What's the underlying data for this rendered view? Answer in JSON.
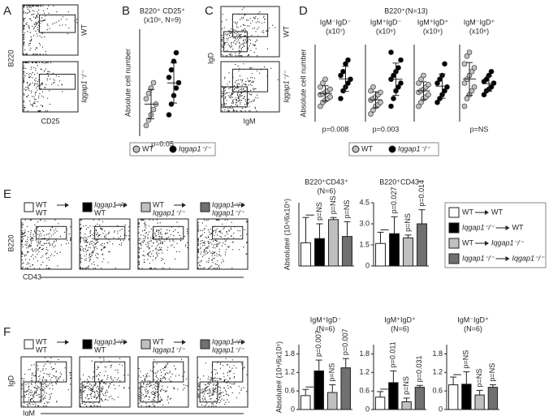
{
  "panel_labels": [
    "A",
    "B",
    "C",
    "D",
    "E",
    "F"
  ],
  "flow_A": {
    "ylabel": "B220",
    "xlabel": "CD25",
    "rows": [
      "WT",
      "Iqgap1⁻/⁻"
    ]
  },
  "flow_C": {
    "ylabel": "IgD",
    "xlabel": "IgM",
    "rows": [
      "WT",
      "Iqgap1⁻/⁻"
    ]
  },
  "flow_E": {
    "ylabel": "B220",
    "xlabel": "CD43"
  },
  "flow_F": {
    "ylabel": "IgD",
    "xlabel": "IgM"
  },
  "d_title": "B220⁺(N=13)",
  "groups": [
    {
      "from": "WT",
      "to": "WT",
      "color": "#ffffff"
    },
    {
      "from": "Iqgap1⁻/⁻",
      "to": "WT",
      "color": "#000000"
    },
    {
      "from": "WT",
      "to": "Iqgap1⁻/⁻",
      "color": "#c0c0c0"
    },
    {
      "from": "Iqgap1⁻/⁻",
      "to": "Iqgap1⁻/⁻",
      "color": "#707070"
    }
  ],
  "chart_data": [
    {
      "type": "scatter",
      "title": "B220⁺ CD25⁺",
      "subtitle": "(x10⁶, N=9)",
      "ylabel": "Absolute cell number",
      "annotation": "p=0.05",
      "ylim": [
        0,
        1
      ],
      "series": [
        {
          "name": "WT",
          "color": "#c0c0c0",
          "values": [
            0.1,
            0.15,
            0.2,
            0.25,
            0.3,
            0.35,
            0.4,
            0.45,
            0.5
          ]
        },
        {
          "name": "Iqgap1⁻/⁻",
          "color": "#000000",
          "values": [
            0.2,
            0.3,
            0.38,
            0.45,
            0.5,
            0.55,
            0.62,
            0.7,
            0.78
          ]
        }
      ]
    },
    {
      "type": "scatter",
      "title": "IgM⁻IgD⁻",
      "subtitle": "(x10⁷)",
      "ylabel": "Absolute cell number",
      "annotation": "p=0.008",
      "ylim": [
        0,
        1
      ],
      "series": [
        {
          "name": "WT",
          "color": "#c0c0c0",
          "values": [
            0.2,
            0.25,
            0.28,
            0.3,
            0.32,
            0.35,
            0.36,
            0.38,
            0.4,
            0.42,
            0.45,
            0.5,
            0.55
          ]
        },
        {
          "name": "Iqgap1⁻/⁻",
          "color": "#000000",
          "values": [
            0.3,
            0.4,
            0.45,
            0.5,
            0.55,
            0.6,
            0.65,
            0.75,
            0.8
          ]
        }
      ]
    },
    {
      "type": "scatter",
      "title": "IgM⁺IgD⁻",
      "subtitle": "(x10⁶)",
      "annotation": "p=0.003",
      "ylim": [
        0,
        1
      ],
      "series": [
        {
          "name": "WT",
          "color": "#c0c0c0",
          "values": [
            0.1,
            0.15,
            0.2,
            0.22,
            0.25,
            0.28,
            0.3,
            0.32,
            0.35,
            0.38,
            0.4,
            0.45
          ]
        },
        {
          "name": "Iqgap1⁻/⁻",
          "color": "#000000",
          "values": [
            0.2,
            0.3,
            0.4,
            0.45,
            0.5,
            0.55,
            0.6,
            0.65,
            0.7,
            0.8,
            0.9
          ]
        }
      ]
    },
    {
      "type": "scatter",
      "title": "IgM⁺IgD⁺",
      "subtitle": "(x10⁶)",
      "ylim": [
        0,
        1
      ],
      "series": [
        {
          "name": "WT",
          "color": "#c0c0c0",
          "values": [
            0.2,
            0.25,
            0.3,
            0.32,
            0.35,
            0.38,
            0.4,
            0.42,
            0.45,
            0.48,
            0.5,
            0.55,
            0.6
          ]
        },
        {
          "name": "Iqgap1⁻/⁻",
          "color": "#000000",
          "values": [
            0.25,
            0.3,
            0.35,
            0.4,
            0.45,
            0.5,
            0.55,
            0.6,
            0.75
          ]
        }
      ]
    },
    {
      "type": "scatter",
      "title": "IgM⁻IgD⁺",
      "subtitle": "(x10⁶)",
      "annotation": "p=NS",
      "ylim": [
        0,
        1
      ],
      "series": [
        {
          "name": "WT",
          "color": "#c0c0c0",
          "values": [
            0.2,
            0.3,
            0.35,
            0.4,
            0.45,
            0.5,
            0.55,
            0.6,
            0.65,
            0.7,
            0.75,
            0.85,
            0.9
          ]
        },
        {
          "name": "Iqgap1⁻/⁻",
          "color": "#000000",
          "values": [
            0.35,
            0.4,
            0.42,
            0.45,
            0.5,
            0.52,
            0.55,
            0.6,
            0.65
          ]
        }
      ]
    },
    {
      "type": "bar",
      "title": "B220⁺CD43⁺",
      "subtitle": "(N=6)",
      "ylabel": "Absolute# (10⁴/6x10⁵)",
      "ylim": [
        0,
        1.5
      ],
      "values": [
        0.55,
        0.65,
        1.1,
        0.7
      ],
      "errors": [
        0.6,
        0.35,
        0.05,
        0.35
      ],
      "annotations": [
        "p=NS",
        "p=NS",
        "p=NS"
      ]
    },
    {
      "type": "bar",
      "title": "B220⁺CD43⁻",
      "ylim": [
        0,
        4.5
      ],
      "yticks": [
        0,
        1.5,
        {
          "value": 3,
          "label": "3.0"
        },
        4.5
      ],
      "values": [
        1.6,
        2.3,
        2.0,
        3.0
      ],
      "errors": [
        0.8,
        1.2,
        0.2,
        1.0
      ],
      "annotations": [
        "p=0.027",
        "p=NS",
        "p=0.014"
      ]
    },
    {
      "type": "bar",
      "title": "IgM⁺IgD⁻",
      "subtitle": "(N=6)",
      "ylabel": "Absolute# (10⁴/6x10⁵)",
      "ylim": [
        0,
        2.1
      ],
      "yticks": [
        0,
        0.6,
        1.2,
        1.8
      ],
      "values": [
        0.45,
        1.25,
        0.55,
        1.35
      ],
      "errors": [
        0.2,
        0.35,
        0.25,
        0.3
      ],
      "annotations": [
        "p=0.007",
        "p=NS",
        "p=0.007"
      ]
    },
    {
      "type": "bar",
      "title": "IgM⁺IgD⁺",
      "subtitle": "(N=6)",
      "ylim": [
        0,
        2.1
      ],
      "yticks": [
        0,
        0.6,
        1.2,
        1.8
      ],
      "values": [
        0.4,
        0.87,
        0.25,
        0.72
      ],
      "errors": [
        0.18,
        0.38,
        0.12,
        0.06
      ],
      "annotations": [
        "p=0.011",
        "p=NS",
        "p=0.031"
      ]
    },
    {
      "type": "bar",
      "title": "IgM⁻IgD⁺",
      "subtitle": "(N=6)",
      "ylim": [
        0,
        2.1
      ],
      "yticks": [
        0,
        0.6,
        1.2,
        1.8
      ],
      "values": [
        0.8,
        0.82,
        0.47,
        0.72
      ],
      "errors": [
        0.25,
        0.4,
        0.15,
        0.08
      ],
      "annotations": [
        "p=NS",
        "p=NS",
        "p=NS"
      ]
    }
  ]
}
